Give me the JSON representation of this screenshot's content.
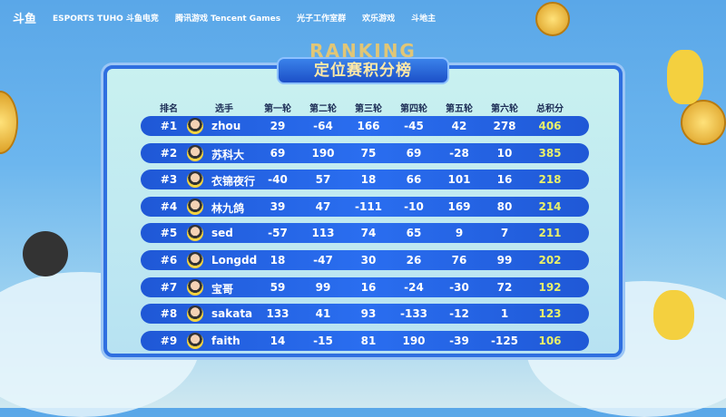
{
  "logos": [
    "斗鱼",
    "ESPORTS TUHO 斗鱼电竞",
    "腾讯游戏 Tencent Games",
    "光子工作室群",
    "欢乐游戏",
    "斗地主"
  ],
  "ranking_label": "RANKING",
  "title": "定位赛积分榜",
  "headers": [
    "排名",
    "选手",
    "第一轮",
    "第二轮",
    "第三轮",
    "第四轮",
    "第五轮",
    "第六轮",
    "总积分"
  ],
  "rows": [
    {
      "rank": "#1",
      "name": "zhou",
      "scores": [
        "29",
        "-64",
        "166",
        "-45",
        "42",
        "278"
      ],
      "total": "406"
    },
    {
      "rank": "#2",
      "name": "苏科大",
      "scores": [
        "69",
        "190",
        "75",
        "69",
        "-28",
        "10"
      ],
      "total": "385"
    },
    {
      "rank": "#3",
      "name": "衣锦夜行",
      "scores": [
        "-40",
        "57",
        "18",
        "66",
        "101",
        "16"
      ],
      "total": "218"
    },
    {
      "rank": "#4",
      "name": "林九鸽",
      "scores": [
        "39",
        "47",
        "-111",
        "-10",
        "169",
        "80"
      ],
      "total": "214"
    },
    {
      "rank": "#5",
      "name": "sed",
      "scores": [
        "-57",
        "113",
        "74",
        "65",
        "9",
        "7"
      ],
      "total": "211"
    },
    {
      "rank": "#6",
      "name": "Longdd",
      "scores": [
        "18",
        "-47",
        "30",
        "26",
        "76",
        "99"
      ],
      "total": "202"
    },
    {
      "rank": "#7",
      "name": "宝哥",
      "scores": [
        "59",
        "99",
        "16",
        "-24",
        "-30",
        "72"
      ],
      "total": "192"
    },
    {
      "rank": "#8",
      "name": "sakata",
      "scores": [
        "133",
        "41",
        "93",
        "-133",
        "-12",
        "1"
      ],
      "total": "123"
    },
    {
      "rank": "#9",
      "name": "faith",
      "scores": [
        "14",
        "-15",
        "81",
        "190",
        "-39",
        "-125"
      ],
      "total": "106"
    }
  ],
  "colors": {
    "row": "#2a6ef0",
    "total": "#e9f06a",
    "title": "#ffe9a6"
  }
}
